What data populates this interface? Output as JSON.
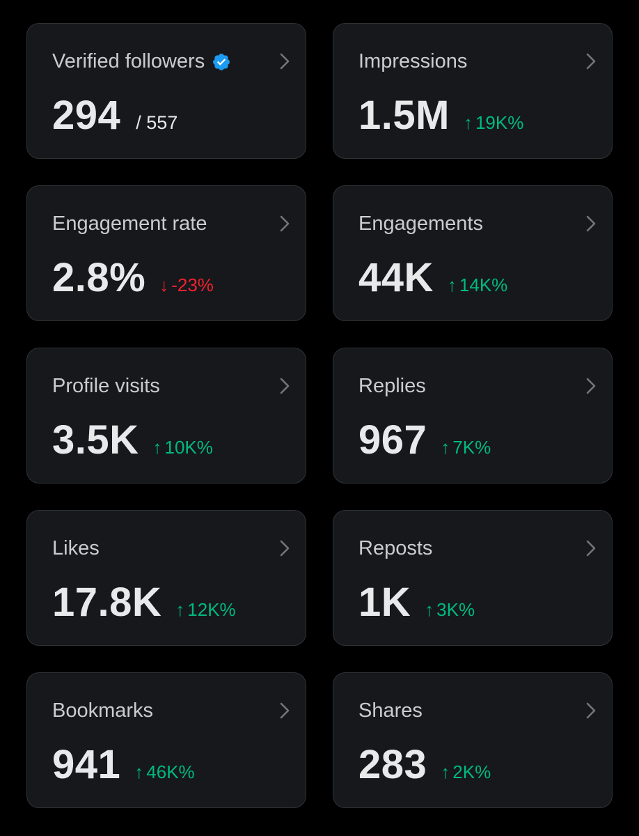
{
  "colors": {
    "background": "#000000",
    "card": "#16181c",
    "border": "#2f3336",
    "positive": "#00ba7c",
    "negative": "#f4212e",
    "verified": "#1d9bf0"
  },
  "metrics": {
    "verified_followers": {
      "label": "Verified followers",
      "value": "294",
      "total": "/ 557",
      "icon": "verified-badge-icon"
    },
    "impressions": {
      "label": "Impressions",
      "value": "1.5M",
      "change": "19K%",
      "direction": "up"
    },
    "engagement_rate": {
      "label": "Engagement rate",
      "value": "2.8%",
      "change": "-23%",
      "direction": "down"
    },
    "engagements": {
      "label": "Engagements",
      "value": "44K",
      "change": "14K%",
      "direction": "up"
    },
    "profile_visits": {
      "label": "Profile visits",
      "value": "3.5K",
      "change": "10K%",
      "direction": "up"
    },
    "replies": {
      "label": "Replies",
      "value": "967",
      "change": "7K%",
      "direction": "up"
    },
    "likes": {
      "label": "Likes",
      "value": "17.8K",
      "change": "12K%",
      "direction": "up"
    },
    "reposts": {
      "label": "Reposts",
      "value": "1K",
      "change": "3K%",
      "direction": "up"
    },
    "bookmarks": {
      "label": "Bookmarks",
      "value": "941",
      "change": "46K%",
      "direction": "up"
    },
    "shares": {
      "label": "Shares",
      "value": "283",
      "change": "2K%",
      "direction": "up"
    }
  },
  "arrows": {
    "up": "↑",
    "down": "↓"
  }
}
